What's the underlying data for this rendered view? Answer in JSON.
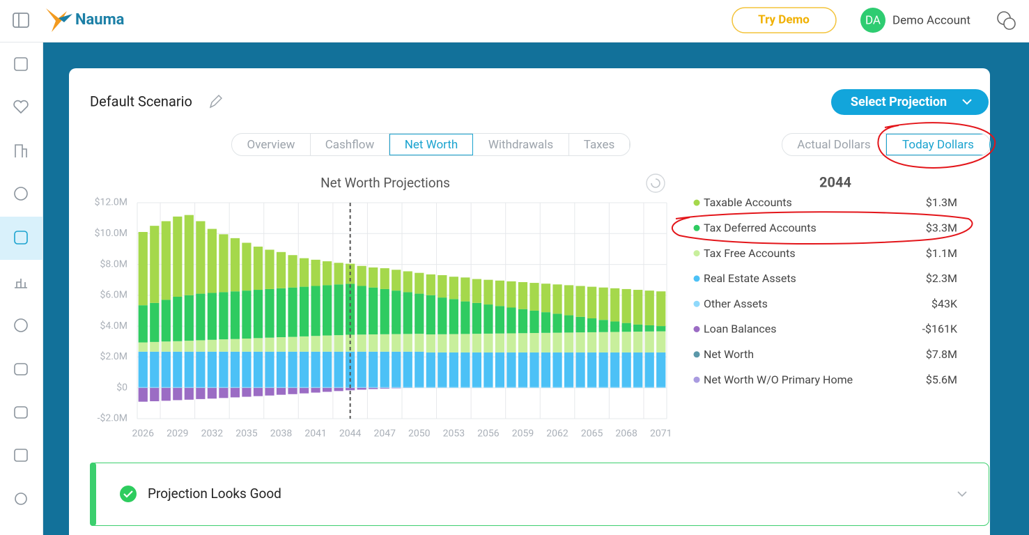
{
  "header": {
    "brand": "Nauma",
    "try_demo": "Try Demo",
    "avatar": "DA",
    "account": "Demo Account"
  },
  "scenario": {
    "title": "Default Scenario",
    "select": "Select Projection",
    "tabs": [
      "Overview",
      "Cashflow",
      "Net Worth",
      "Withdrawals",
      "Taxes"
    ],
    "active_tab": 2,
    "dollars": [
      "Actual Dollars",
      "Today Dollars"
    ],
    "active_dollars": 1
  },
  "chart_data": {
    "type": "bar",
    "stacked": true,
    "title": "Net Worth Projections",
    "categories": [
      "2026",
      null,
      null,
      "2029",
      null,
      null,
      "2032",
      null,
      null,
      "2035",
      null,
      null,
      "2038",
      null,
      null,
      "2041",
      null,
      null,
      "2044",
      null,
      null,
      "2047",
      null,
      null,
      "2050",
      null,
      null,
      "2053",
      null,
      null,
      "2056",
      null,
      null,
      "2059",
      null,
      null,
      "2062",
      null,
      null,
      "2065",
      null,
      null,
      "2068",
      null,
      null,
      "2071"
    ],
    "series": [
      {
        "name": "Taxable Accounts",
        "color": "#a5d84b",
        "values": [
          4.75,
          5.0,
          5.1,
          5.2,
          5.2,
          4.7,
          4.15,
          3.75,
          3.45,
          3.1,
          2.8,
          2.55,
          2.35,
          2.1,
          1.85,
          1.7,
          1.55,
          1.4,
          1.3,
          1.3,
          1.3,
          1.35,
          1.35,
          1.35,
          1.35,
          1.35,
          1.45,
          1.45,
          1.55,
          1.55,
          1.6,
          1.65,
          1.7,
          1.75,
          1.8,
          1.85,
          1.9,
          1.95,
          2.0,
          2.05,
          2.1,
          2.15,
          2.2,
          2.25,
          2.25,
          2.25
        ]
      },
      {
        "name": "Tax Deferred Accounts",
        "color": "#2fcb61",
        "values": [
          2.41,
          2.53,
          2.7,
          2.88,
          2.95,
          3.02,
          3.04,
          3.06,
          3.09,
          3.11,
          3.13,
          3.15,
          3.17,
          3.2,
          3.22,
          3.24,
          3.26,
          3.29,
          3.3,
          3.15,
          3.04,
          2.93,
          2.82,
          2.71,
          2.6,
          2.54,
          2.38,
          2.27,
          2.11,
          2.0,
          1.89,
          1.78,
          1.67,
          1.56,
          1.45,
          1.34,
          1.23,
          1.12,
          1.01,
          0.9,
          0.79,
          0.68,
          0.57,
          0.46,
          0.4,
          0.34
        ]
      },
      {
        "name": "Tax Free Accounts",
        "color": "#c8ef9c",
        "values": [
          0.6,
          0.63,
          0.66,
          0.68,
          0.71,
          0.74,
          0.77,
          0.8,
          0.82,
          0.85,
          0.88,
          0.91,
          0.94,
          0.96,
          0.99,
          1.02,
          1.05,
          1.07,
          1.1,
          1.11,
          1.12,
          1.13,
          1.14,
          1.15,
          1.16,
          1.17,
          1.18,
          1.19,
          1.2,
          1.21,
          1.22,
          1.23,
          1.24,
          1.25,
          1.26,
          1.27,
          1.28,
          1.29,
          1.3,
          1.31,
          1.32,
          1.33,
          1.34,
          1.35,
          1.36,
          1.37
        ]
      },
      {
        "name": "Real Estate Assets",
        "color": "#4cc1f6",
        "values": [
          2.3,
          2.3,
          2.3,
          2.3,
          2.3,
          2.3,
          2.3,
          2.3,
          2.3,
          2.3,
          2.3,
          2.3,
          2.3,
          2.3,
          2.3,
          2.3,
          2.3,
          2.3,
          2.3,
          2.3,
          2.3,
          2.3,
          2.3,
          2.3,
          2.3,
          2.25,
          2.25,
          2.25,
          2.25,
          2.25,
          2.25,
          2.25,
          2.25,
          2.25,
          2.25,
          2.25,
          2.25,
          2.25,
          2.25,
          2.25,
          2.25,
          2.25,
          2.25,
          2.25,
          2.25,
          2.25
        ]
      },
      {
        "name": "Other Assets",
        "color": "#8fd9fb",
        "values": [
          0.043,
          0.043,
          0.043,
          0.043,
          0.043,
          0.043,
          0.043,
          0.043,
          0.043,
          0.043,
          0.043,
          0.043,
          0.043,
          0.043,
          0.043,
          0.043,
          0.043,
          0.043,
          0.043,
          0.043,
          0.043,
          0.043,
          0.043,
          0.043,
          0.043,
          0.043,
          0.043,
          0.043,
          0.043,
          0.043,
          0.043,
          0.043,
          0.043,
          0.043,
          0.043,
          0.043,
          0.043,
          0.043,
          0.043,
          0.043,
          0.043,
          0.043,
          0.043,
          0.043,
          0.043,
          0.043
        ]
      },
      {
        "name": "Loan Balances",
        "color": "#9b6cc4",
        "values": [
          -0.9,
          -0.87,
          -0.84,
          -0.8,
          -0.77,
          -0.73,
          -0.7,
          -0.66,
          -0.62,
          -0.58,
          -0.54,
          -0.5,
          -0.45,
          -0.41,
          -0.36,
          -0.31,
          -0.26,
          -0.21,
          -0.161,
          -0.12,
          -0.08,
          -0.05,
          -0.03,
          -0.01,
          0,
          0,
          0,
          0,
          0,
          0,
          0,
          0,
          0,
          0,
          0,
          0,
          0,
          0,
          0,
          0,
          0,
          0,
          0,
          0,
          0,
          0
        ]
      }
    ],
    "ylim": [
      -2,
      12
    ],
    "yticks": [
      {
        "value": -2,
        "label": "-$2.0M"
      },
      {
        "value": 0,
        "label": "$0"
      },
      {
        "value": 2,
        "label": "$2.0M"
      },
      {
        "value": 4,
        "label": "$4.0M"
      },
      {
        "value": 6,
        "label": "$6.0M"
      },
      {
        "value": 8,
        "label": "$8.0M"
      },
      {
        "value": 10,
        "label": "$10.0M"
      },
      {
        "value": 12,
        "label": "$12.0M"
      }
    ],
    "grid": true,
    "selected": {
      "year": "2044",
      "values": [
        1.3,
        3.3,
        1.1,
        2.3,
        0.043,
        -0.161
      ],
      "value_labels": [
        "$1.3M",
        "$3.3M",
        "$1.1M",
        "$2.3M",
        "$43K",
        "-$161K"
      ]
    },
    "totals": [
      {
        "name": "Net Worth",
        "color": "#5b98a9",
        "value": 7.8,
        "value_label": "$7.8M"
      },
      {
        "name": "Net Worth W/O Primary Home",
        "color": "#a99be0",
        "value": 5.6,
        "value_label": "$5.6M"
      }
    ]
  },
  "status": "Projection Looks Good"
}
